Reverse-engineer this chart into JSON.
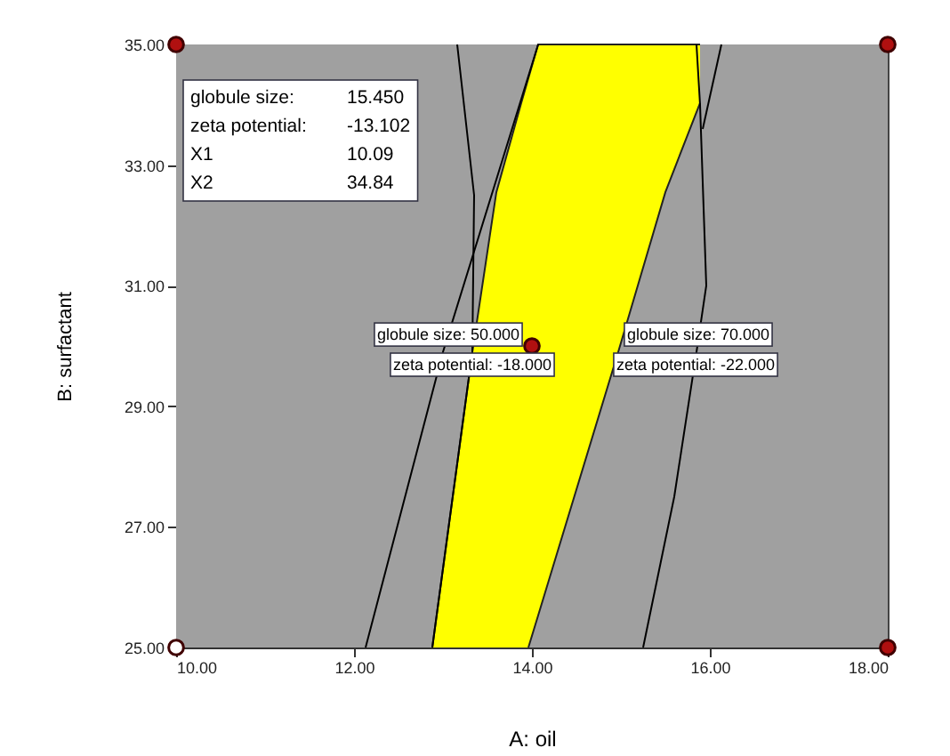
{
  "chart_data": {
    "type": "line",
    "xlabel": "A: oil",
    "ylabel": "B: surfactant",
    "xlim": [
      10,
      18
    ],
    "ylim": [
      25,
      35
    ],
    "xticks": [
      {
        "value": 10,
        "label": "10.00"
      },
      {
        "value": 12,
        "label": "12.00"
      },
      {
        "value": 14,
        "label": "14.00"
      },
      {
        "value": 16,
        "label": "16.00"
      },
      {
        "value": 18,
        "label": "18.00"
      }
    ],
    "yticks": [
      {
        "value": 25,
        "label": "25.00"
      },
      {
        "value": 27,
        "label": "27.00"
      },
      {
        "value": 29,
        "label": "29.00"
      },
      {
        "value": 31,
        "label": "31.00"
      },
      {
        "value": 33,
        "label": "33.00"
      },
      {
        "value": 35,
        "label": "35.00"
      }
    ],
    "bands": [
      {
        "axis": "x",
        "from": 10,
        "to": 18,
        "color": "#a0a0a0"
      }
    ],
    "series": [
      {
        "type": "area",
        "color": "#ffff00",
        "x": [
          12.88,
          13.33,
          13.6,
          13.88,
          13.96,
          14.07,
          14.97,
          15.5,
          15.89
        ],
        "values": [
          25,
          29.9,
          32.55,
          34.03,
          34.44,
          35,
          35,
          35,
          35
        ]
      },
      {
        "type": "area",
        "color": "#a0a0a0",
        "x": [
          13.96,
          14.07,
          14.97,
          15.5,
          15.89
        ],
        "values": [
          25,
          25.53,
          29.9,
          32.55,
          34.03
        ]
      },
      {
        "color": "#000000",
        "x": [
          12.13,
          13.0,
          14.07
        ],
        "values": [
          25,
          29.9,
          35
        ]
      },
      {
        "color": "#000000",
        "x": [
          12.88,
          13.33,
          13.35,
          13.16
        ],
        "values": [
          25,
          29.9,
          32.5,
          35
        ]
      },
      {
        "color": "#000000",
        "x": [
          15.25,
          15.6,
          15.85,
          15.96,
          15.89,
          15.85
        ],
        "values": [
          25,
          27.5,
          29.9,
          31,
          34,
          35
        ]
      },
      {
        "color": "#000000",
        "x": [
          15.92,
          16.13
        ],
        "values": [
          33.6,
          35
        ]
      },
      {
        "type": "scatter",
        "color": "#b01010",
        "x": [
          10,
          18,
          18,
          14
        ],
        "values": [
          35,
          35,
          25,
          30
        ]
      },
      {
        "type": "scatter",
        "color": "#ffffff",
        "x": [
          10
        ],
        "values": [
          25
        ]
      }
    ],
    "annotations": [
      {
        "text": "globule size: 50.000",
        "x": 13.06,
        "y": 30.19
      },
      {
        "text": "zeta potential: -18.000",
        "x": 13.33,
        "y": 29.69
      },
      {
        "text": "globule size: 70.000",
        "x": 15.87,
        "y": 30.19
      },
      {
        "text": "zeta potential: -22.000",
        "x": 15.84,
        "y": 29.69
      },
      "globule size:",
      "15.450",
      "zeta potential:",
      "-13.102",
      "X1",
      "10.09",
      "X2",
      "34.84"
    ]
  }
}
